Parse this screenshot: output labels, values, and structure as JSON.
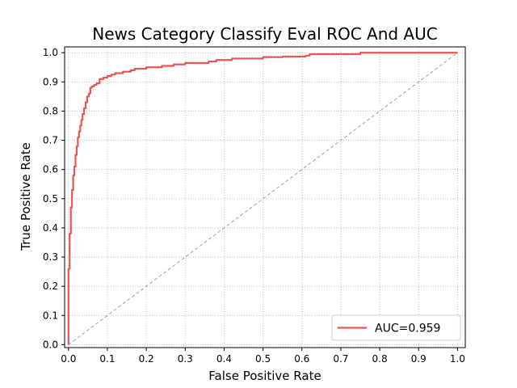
{
  "chart_data": {
    "type": "line",
    "title": "News Category Classify Eval ROC And AUC",
    "xlabel": "False Positive Rate",
    "ylabel": "True Positive Rate",
    "xlim": [
      -0.01,
      1.02
    ],
    "ylim": [
      -0.01,
      1.02
    ],
    "xticks": [
      "0.0",
      "0.1",
      "0.2",
      "0.3",
      "0.4",
      "0.5",
      "0.6",
      "0.7",
      "0.8",
      "0.9",
      "1.0"
    ],
    "yticks": [
      "0.0",
      "0.1",
      "0.2",
      "0.3",
      "0.4",
      "0.5",
      "0.6",
      "0.7",
      "0.8",
      "0.9",
      "1.0"
    ],
    "grid": true,
    "legend_position": "lower-right",
    "colors": {
      "roc": "#e85555",
      "diagonal": "#a0a0a0",
      "grid": "#b0b0b0"
    },
    "series": [
      {
        "name": "AUC=0.959",
        "style": "solid",
        "x": [
          0.0,
          0.0,
          0.003,
          0.003,
          0.006,
          0.006,
          0.009,
          0.009,
          0.012,
          0.012,
          0.015,
          0.015,
          0.018,
          0.018,
          0.021,
          0.021,
          0.024,
          0.024,
          0.027,
          0.027,
          0.03,
          0.03,
          0.033,
          0.033,
          0.036,
          0.036,
          0.04,
          0.04,
          0.044,
          0.044,
          0.048,
          0.048,
          0.052,
          0.052,
          0.056,
          0.056,
          0.06,
          0.06,
          0.066,
          0.066,
          0.072,
          0.072,
          0.08,
          0.08,
          0.09,
          0.09,
          0.1,
          0.1,
          0.11,
          0.11,
          0.12,
          0.12,
          0.14,
          0.14,
          0.16,
          0.16,
          0.17,
          0.17,
          0.2,
          0.2,
          0.24,
          0.24,
          0.27,
          0.27,
          0.3,
          0.3,
          0.36,
          0.36,
          0.38,
          0.38,
          0.42,
          0.42,
          0.5,
          0.5,
          0.55,
          0.55,
          0.61,
          0.61,
          0.62,
          0.62,
          0.75,
          0.75,
          1.0
        ],
        "y": [
          0.0,
          0.26,
          0.26,
          0.38,
          0.38,
          0.47,
          0.47,
          0.53,
          0.53,
          0.58,
          0.58,
          0.61,
          0.61,
          0.65,
          0.65,
          0.68,
          0.68,
          0.71,
          0.71,
          0.73,
          0.73,
          0.75,
          0.75,
          0.77,
          0.77,
          0.79,
          0.79,
          0.81,
          0.81,
          0.83,
          0.83,
          0.85,
          0.85,
          0.86,
          0.86,
          0.88,
          0.88,
          0.885,
          0.885,
          0.89,
          0.89,
          0.895,
          0.895,
          0.91,
          0.91,
          0.915,
          0.915,
          0.92,
          0.92,
          0.925,
          0.925,
          0.93,
          0.93,
          0.935,
          0.935,
          0.94,
          0.94,
          0.945,
          0.945,
          0.95,
          0.95,
          0.955,
          0.955,
          0.96,
          0.96,
          0.965,
          0.965,
          0.97,
          0.97,
          0.975,
          0.975,
          0.98,
          0.98,
          0.985,
          0.985,
          0.987,
          0.987,
          0.99,
          0.99,
          0.995,
          0.995,
          1.0,
          1.0
        ]
      },
      {
        "name": "",
        "style": "dashed",
        "x": [
          0.0,
          1.0
        ],
        "y": [
          0.0,
          1.0
        ]
      }
    ],
    "legend": [
      {
        "label": "AUC=0.959",
        "series": 0
      }
    ]
  }
}
